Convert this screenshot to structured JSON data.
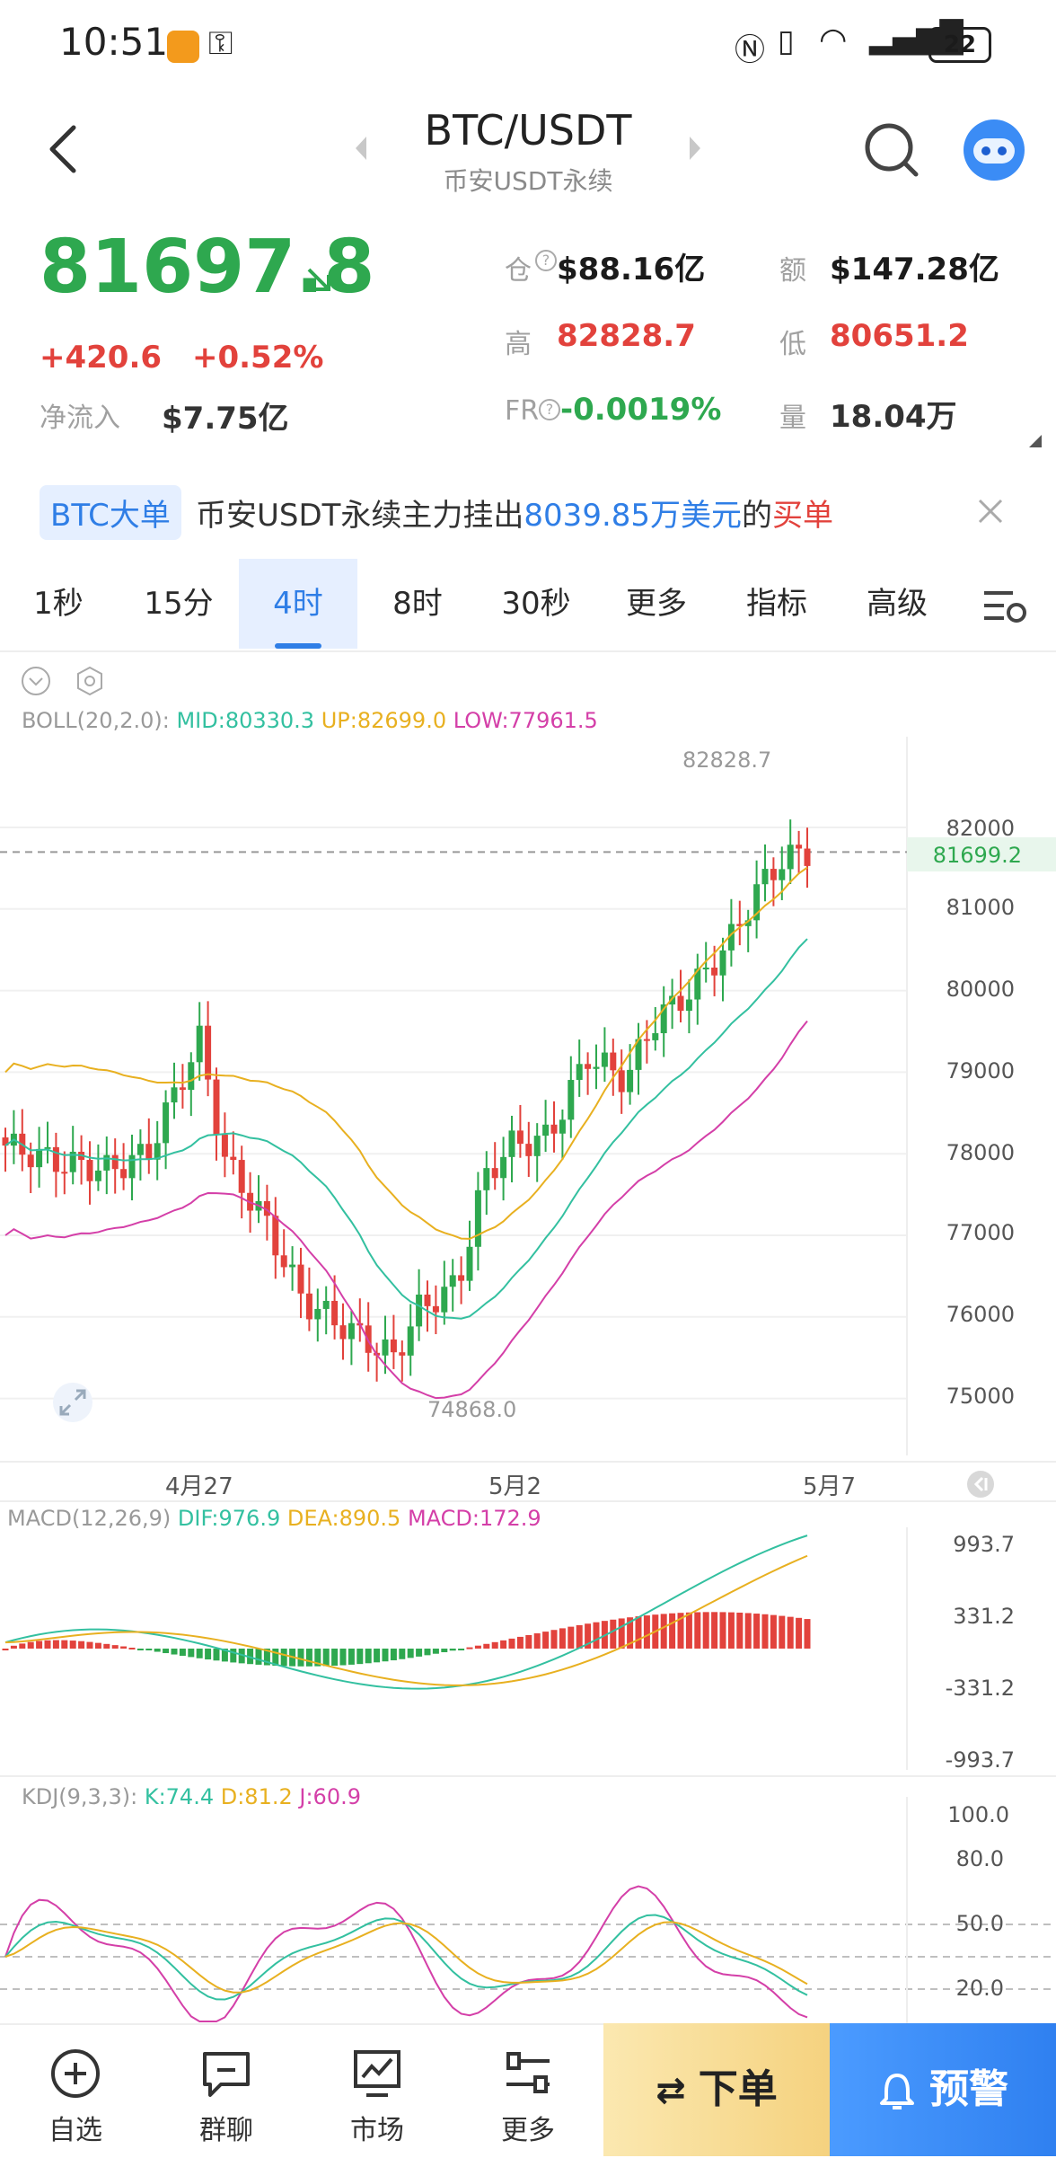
{
  "status_bar": {
    "time": "10:51",
    "battery": "22"
  },
  "header": {
    "pair": "BTC/USDT",
    "market": "币安USDT永续"
  },
  "ticker": {
    "last_price": "81697.8",
    "change": "+420.6",
    "change_pct": "+0.52%",
    "netflow_label": "净流入",
    "netflow_value": "$7.75亿",
    "oi_label": "仓",
    "oi_value": "$88.16亿",
    "amount_label": "额",
    "amount_value": "$147.28亿",
    "high_label": "高",
    "high_value": "82828.7",
    "low_label": "低",
    "low_value": "80651.2",
    "fr_label": "FR",
    "fr_value": "-0.0019%",
    "volume_label": "量",
    "volume_value": "18.04万"
  },
  "banner": {
    "tag": "BTC大单",
    "text_pre": "币安USDT永续主力挂出",
    "amount": "8039.85万美元",
    "text_mid": "的",
    "side": "买单"
  },
  "tabs": [
    {
      "label": "1秒"
    },
    {
      "label": "15分"
    },
    {
      "label": "4时"
    },
    {
      "label": "8时"
    },
    {
      "label": "30秒"
    },
    {
      "label": "更多"
    },
    {
      "label": "指标"
    },
    {
      "label": "高级"
    }
  ],
  "active_tab": "4时",
  "main_chart": {
    "boll_title": "BOLL(20,2.0):",
    "boll_mid": "MID:80330.3",
    "boll_up": "UP:82699.0",
    "boll_low": "LOW:77961.5",
    "max_label": "82828.7",
    "min_label": "74868.0",
    "last_label": "81699.2",
    "y_ticks": [
      "82000",
      "81000",
      "80000",
      "79000",
      "78000",
      "77000",
      "76000",
      "75000"
    ],
    "x_ticks": [
      "4月27",
      "5月2",
      "5月7"
    ]
  },
  "macd": {
    "title": "MACD(12,26,9)",
    "dif": "DIF:976.9",
    "dea": "DEA:890.5",
    "macd": "MACD:172.9",
    "y_ticks": [
      "993.7",
      "331.2",
      "-331.2",
      "-993.7"
    ]
  },
  "kdj": {
    "title": "KDJ(9,3,3):",
    "k": "K:74.4",
    "d": "D:81.2",
    "j": "J:60.9",
    "y_ticks": [
      "100.0",
      "80.0",
      "50.0",
      "20.0"
    ]
  },
  "nav": [
    {
      "label": "自选",
      "icon": "plus-circle-icon"
    },
    {
      "label": "群聊",
      "icon": "chat-icon"
    },
    {
      "label": "市场",
      "icon": "market-chart-icon"
    },
    {
      "label": "更多",
      "icon": "more-sliders-icon"
    }
  ],
  "actions": {
    "order": "下单",
    "alert": "预警"
  },
  "colors": {
    "up": "#2ea84f",
    "down": "#e2423c",
    "accent": "#2f7ee6",
    "boll_mid": "#33c0a0",
    "boll_up": "#e8b020",
    "boll_low": "#d43fa8"
  }
}
